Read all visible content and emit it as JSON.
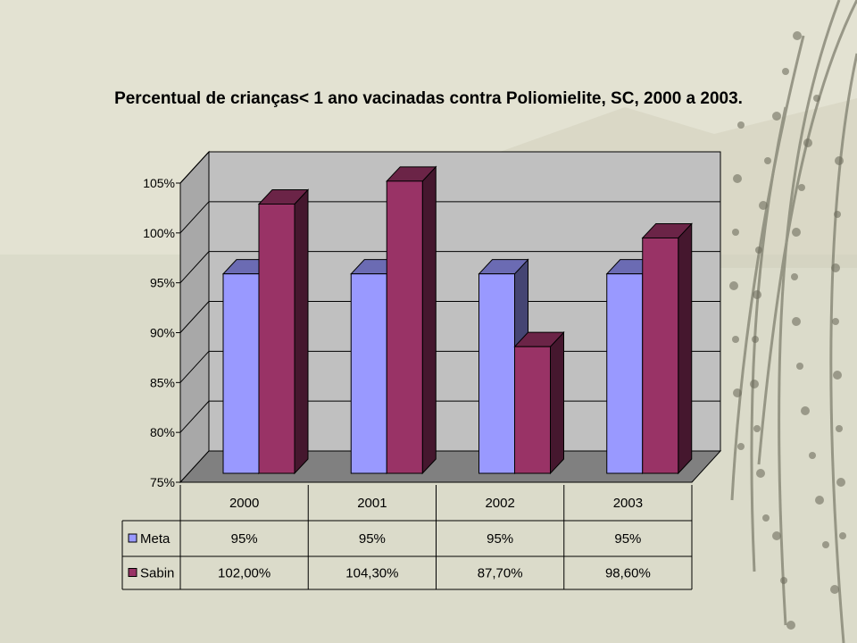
{
  "chart_data": {
    "type": "bar",
    "title": "Percentual de crianças< 1 ano vacinadas contra Poliomielite, SC, 2000 a 2003.",
    "categories": [
      "2000",
      "2001",
      "2002",
      "2003"
    ],
    "series": [
      {
        "name": "Meta",
        "values": [
          95,
          95,
          95,
          95
        ],
        "labels": [
          "95%",
          "95%",
          "95%",
          "95%"
        ],
        "color": "#9999ff"
      },
      {
        "name": "Sabin",
        "values": [
          102.0,
          104.3,
          87.7,
          98.6
        ],
        "labels": [
          "102,00%",
          "104,30%",
          "87,70%",
          "98,60%"
        ],
        "color": "#993366"
      }
    ],
    "ylim": [
      75,
      105
    ],
    "yticks": [
      "75%",
      "80%",
      "85%",
      "90%",
      "95%",
      "100%",
      "105%"
    ],
    "grid": true,
    "legend": "data-table",
    "threeD": true
  },
  "colors": {
    "wall": "#c0c0c0",
    "floor": "#808080",
    "page_background": "#e3e2d2"
  }
}
